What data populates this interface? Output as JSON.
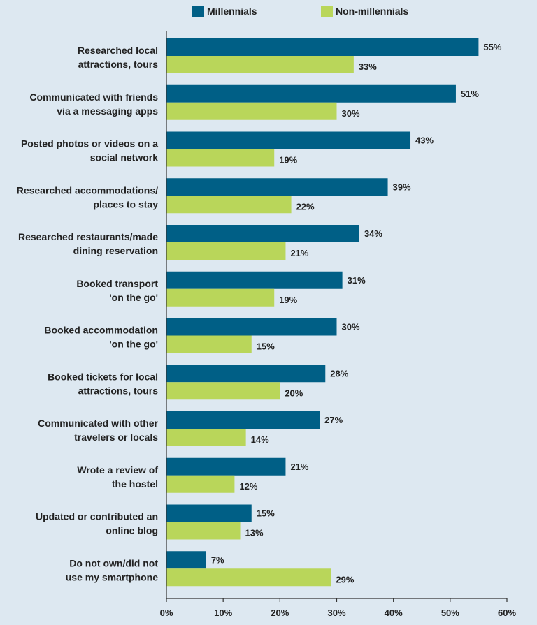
{
  "chart_data": {
    "type": "bar",
    "orientation": "horizontal",
    "categories": [
      [
        "Researched local",
        "attractions, tours"
      ],
      [
        "Communicated with friends",
        "via a messaging apps"
      ],
      [
        "Posted photos or videos on a",
        "social network"
      ],
      [
        "Researched accommodations/",
        "places to stay"
      ],
      [
        "Researched restaurants/made",
        "dining reservation"
      ],
      [
        "Booked transport",
        "'on the go'"
      ],
      [
        "Booked accommodation",
        "'on the go'"
      ],
      [
        "Booked tickets for local",
        "attractions, tours"
      ],
      [
        "Communicated with other",
        "travelers or locals"
      ],
      [
        "Wrote a review of",
        "the hostel"
      ],
      [
        "Updated or contributed an",
        "online blog"
      ],
      [
        "Do not own/did not",
        "use my smartphone"
      ]
    ],
    "series": [
      {
        "name": "Millennials",
        "color": "#005f86",
        "values": [
          55,
          51,
          43,
          39,
          34,
          31,
          30,
          28,
          27,
          21,
          15,
          7
        ]
      },
      {
        "name": "Non-millennials",
        "color": "#b9d65a",
        "values": [
          33,
          30,
          19,
          22,
          21,
          19,
          15,
          20,
          14,
          12,
          13,
          29
        ]
      }
    ],
    "value_suffix": "%",
    "xlim": [
      0,
      60
    ],
    "xticks": [
      "0%",
      "10%",
      "20%",
      "30%",
      "40%",
      "50%",
      "60%"
    ],
    "grid": false,
    "legend_position": "top"
  }
}
